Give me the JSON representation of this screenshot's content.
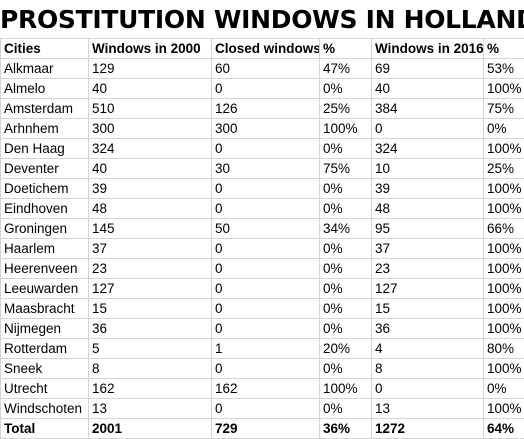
{
  "title": "PROSTITUTION WINDOWS IN HOLLAND",
  "headers": [
    "Cities",
    "Windows in 2000",
    "Closed windows",
    "%",
    "Windows in 2016",
    "%"
  ],
  "rows": [
    [
      "Alkmaar",
      "129",
      "60",
      "47%",
      "69",
      "53%"
    ],
    [
      "Almelo",
      "40",
      "0",
      "0%",
      "40",
      "100%"
    ],
    [
      "Amsterdam",
      "510",
      "126",
      "25%",
      "384",
      "75%"
    ],
    [
      "Arhnhem",
      "300",
      "300",
      "100%",
      "0",
      "0%"
    ],
    [
      "Den Haag",
      "324",
      "0",
      "0%",
      "324",
      "100%"
    ],
    [
      "Deventer",
      "40",
      "30",
      "75%",
      "10",
      "25%"
    ],
    [
      "Doetichem",
      "39",
      "0",
      "0%",
      "39",
      "100%"
    ],
    [
      "Eindhoven",
      "48",
      "0",
      "0%",
      "48",
      "100%"
    ],
    [
      "Groningen",
      "145",
      "50",
      "34%",
      "95",
      "66%"
    ],
    [
      "Haarlem",
      "37",
      "0",
      "0%",
      "37",
      "100%"
    ],
    [
      "Heerenveen",
      "23",
      "0",
      "0%",
      "23",
      "100%"
    ],
    [
      "Leeuwarden",
      "127",
      "0",
      "0%",
      "127",
      "100%"
    ],
    [
      "Maasbracht",
      "15",
      "0",
      "0%",
      "15",
      "100%"
    ],
    [
      "Nijmegen",
      "36",
      "0",
      "0%",
      "36",
      "100%"
    ],
    [
      "Rotterdam",
      "5",
      "1",
      "20%",
      "4",
      "80%"
    ],
    [
      "Sneek",
      "8",
      "0",
      "0%",
      "8",
      "100%"
    ],
    [
      "Utrecht",
      "162",
      "162",
      "100%",
      "0",
      "0%"
    ],
    [
      "Windschoten",
      "13",
      "0",
      "0%",
      "13",
      "100%"
    ]
  ],
  "total": [
    "Total",
    "2001",
    "729",
    "36%",
    "1272",
    "64%"
  ],
  "colors": {
    "text": "#000000",
    "gridline": "#d4d4d4",
    "background": "#ffffff"
  }
}
